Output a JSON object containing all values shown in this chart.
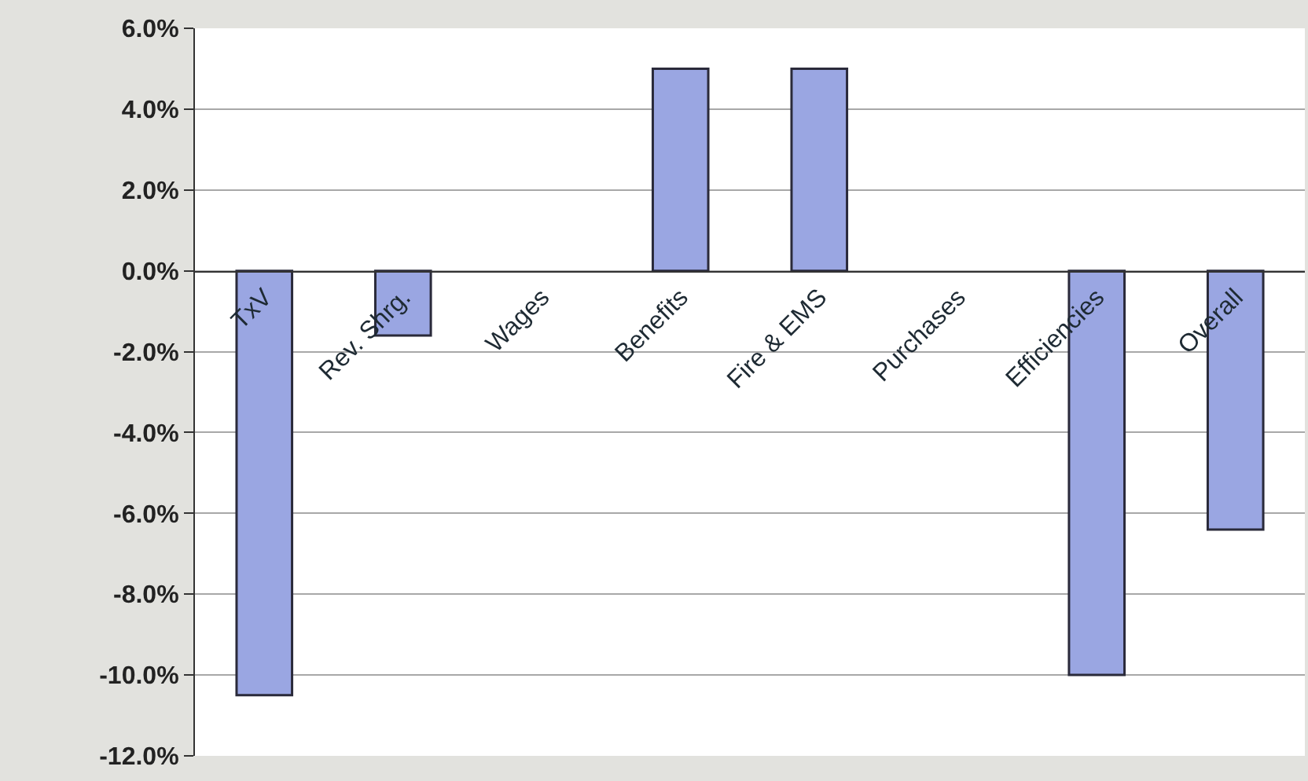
{
  "chart_data": {
    "type": "bar",
    "categories": [
      "TxV",
      "Rev. Shrg.",
      "Wages",
      "Benefits",
      "Fire & EMS",
      "Purchases",
      "Efficiencies",
      "Overall"
    ],
    "values": [
      -10.5,
      -1.6,
      0,
      5.0,
      5.0,
      0,
      -10.0,
      -6.4
    ],
    "color": "#9aa6e2",
    "ylim": [
      -12,
      6
    ],
    "yticks": [
      {
        "value": 6,
        "label": "6.0%"
      },
      {
        "value": 4,
        "label": "4.0%"
      },
      {
        "value": 2,
        "label": "2.0%"
      },
      {
        "value": 0,
        "label": "0.0%"
      },
      {
        "value": -2,
        "label": "-2.0%"
      },
      {
        "value": -4,
        "label": "-4.0%"
      },
      {
        "value": -6,
        "label": "-6.0%"
      },
      {
        "value": -8,
        "label": "-8.0%"
      },
      {
        "value": -10,
        "label": "-10.0%"
      },
      {
        "value": -12,
        "label": "-12.0%"
      }
    ],
    "grid": "y"
  }
}
